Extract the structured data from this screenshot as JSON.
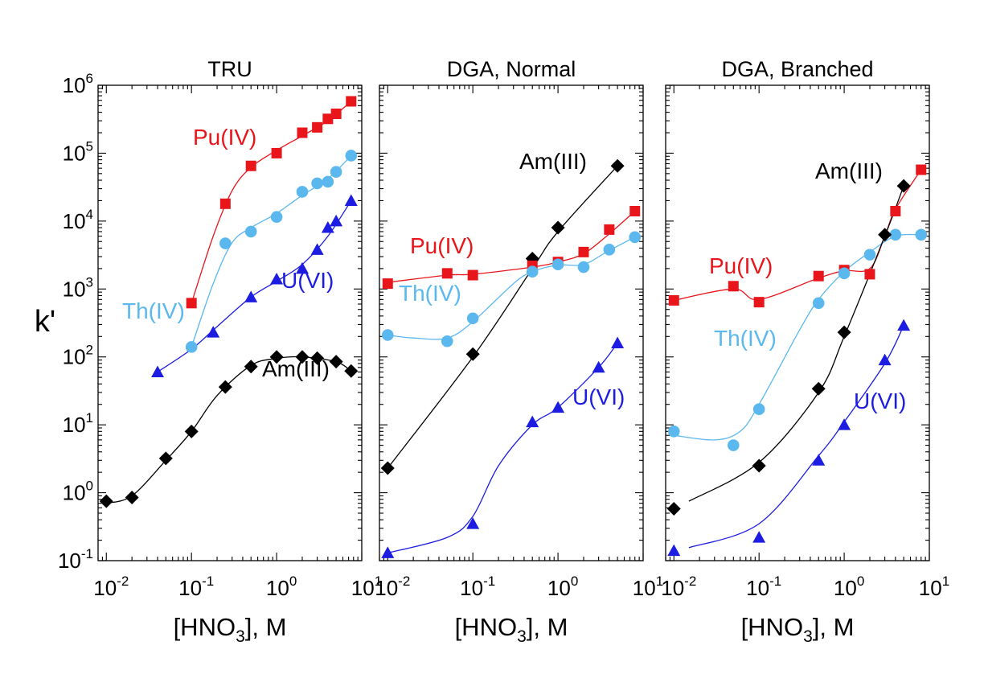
{
  "y_axis_label": "k'",
  "chart_data": [
    {
      "type": "scatter",
      "title": "TRU",
      "xlabel": "[HNO3], M",
      "ylabel": "k'",
      "xscale": "log",
      "yscale": "log",
      "xlim": [
        0.008,
        10
      ],
      "ylim": [
        0.1,
        1000000
      ],
      "x_ticks": [
        "10^-2",
        "10^-1",
        "10^0",
        "10^1"
      ],
      "y_ticks": [
        "10^-1",
        "10^0",
        "10^1",
        "10^2",
        "10^3",
        "10^4",
        "10^5",
        "10^6"
      ],
      "series": [
        {
          "name": "Pu(IV)",
          "color": "#e8151b",
          "marker": "square",
          "x": [
            0.1,
            0.25,
            0.5,
            1,
            2,
            3,
            4,
            5,
            7.5
          ],
          "y": [
            620,
            18000,
            65000,
            100000,
            200000,
            240000,
            320000,
            380000,
            580000
          ]
        },
        {
          "name": "Th(IV)",
          "color": "#5ab8ef",
          "marker": "circle",
          "x": [
            0.1,
            0.25,
            0.5,
            1,
            2,
            3,
            4,
            5,
            7.5
          ],
          "y": [
            140,
            4700,
            7000,
            11500,
            27000,
            36000,
            38000,
            53000,
            92000
          ]
        },
        {
          "name": "U(VI)",
          "color": "#1c1de0",
          "marker": "triangle",
          "x": [
            0.04,
            0.18,
            0.5,
            1,
            2,
            3,
            4,
            5,
            7.5
          ],
          "y": [
            60,
            230,
            760,
            1400,
            2000,
            3800,
            8000,
            10000,
            20000
          ]
        },
        {
          "name": "Am(III)",
          "color": "#000000",
          "marker": "diamond",
          "x": [
            0.01,
            0.02,
            0.05,
            0.1,
            0.25,
            0.5,
            1,
            2,
            3,
            5,
            7.5
          ],
          "y": [
            0.75,
            0.85,
            3.2,
            8,
            36,
            72,
            100,
            100,
            96,
            85,
            62
          ]
        }
      ],
      "curves": [
        {
          "color": "#e8151b",
          "x": [
            0.1,
            0.18,
            0.3,
            0.5,
            1,
            2,
            4,
            7.5
          ],
          "y": [
            620,
            6000,
            28000,
            62000,
            110000,
            180000,
            300000,
            580000
          ]
        },
        {
          "color": "#5ab8ef",
          "x": [
            0.1,
            0.18,
            0.3,
            0.5,
            1,
            2,
            4,
            7.5
          ],
          "y": [
            140,
            1200,
            4800,
            8000,
            13000,
            24000,
            42000,
            92000
          ]
        },
        {
          "color": "#1c1de0",
          "x": [
            0.04,
            0.1,
            0.2,
            0.5,
            1,
            2,
            4,
            7.5
          ],
          "y": [
            60,
            130,
            280,
            760,
            1300,
            2300,
            6000,
            20000
          ]
        },
        {
          "color": "#000000",
          "x": [
            0.01,
            0.02,
            0.05,
            0.1,
            0.2,
            0.5,
            1,
            2,
            5,
            7.5
          ],
          "y": [
            0.7,
            0.9,
            3,
            8,
            27,
            75,
            95,
            100,
            85,
            62
          ]
        }
      ],
      "annotations": [
        "Pu(IV)",
        "Th(IV)",
        "U(VI)",
        "Am(III)"
      ]
    },
    {
      "type": "scatter",
      "title": "DGA, Normal",
      "xlabel": "[HNO3], M",
      "ylabel": "k'",
      "xscale": "log",
      "yscale": "log",
      "xlim": [
        0.008,
        10
      ],
      "ylim": [
        0.1,
        1000000
      ],
      "x_ticks": [
        "10^-2",
        "10^-1",
        "10^0",
        "10^1"
      ],
      "y_ticks": [
        "10^-1",
        "10^0",
        "10^1",
        "10^2",
        "10^3",
        "10^4",
        "10^5",
        "10^6"
      ],
      "series": [
        {
          "name": "Am(III)",
          "color": "#000000",
          "marker": "diamond",
          "x": [
            0.01,
            0.1,
            0.5,
            1,
            5
          ],
          "y": [
            2.3,
            110,
            2800,
            8000,
            65000
          ]
        },
        {
          "name": "Pu(IV)",
          "color": "#e8151b",
          "marker": "square",
          "x": [
            0.01,
            0.05,
            0.1,
            0.5,
            1,
            2,
            4,
            8
          ],
          "y": [
            1200,
            1700,
            1600,
            2200,
            2500,
            3500,
            7500,
            14000
          ]
        },
        {
          "name": "Th(IV)",
          "color": "#5ab8ef",
          "marker": "circle",
          "x": [
            0.01,
            0.05,
            0.1,
            0.5,
            1,
            2,
            4,
            8
          ],
          "y": [
            210,
            170,
            370,
            1800,
            2300,
            2100,
            3800,
            5800
          ]
        },
        {
          "name": "U(VI)",
          "color": "#1c1de0",
          "marker": "triangle",
          "x": [
            0.01,
            0.1,
            0.5,
            1,
            3,
            5
          ],
          "y": [
            0.13,
            0.35,
            11,
            18,
            70,
            160
          ]
        }
      ],
      "curves": [
        {
          "color": "#000000",
          "x": [
            0.01,
            0.1,
            0.5,
            1,
            5
          ],
          "y": [
            2.3,
            100,
            2000,
            7000,
            65000
          ]
        },
        {
          "color": "#e8151b",
          "x": [
            0.01,
            0.05,
            0.1,
            0.5,
            1,
            2,
            4,
            8
          ],
          "y": [
            1250,
            1600,
            1650,
            2100,
            2500,
            3300,
            6500,
            14000
          ]
        },
        {
          "color": "#5ab8ef",
          "x": [
            0.01,
            0.02,
            0.05,
            0.1,
            0.3,
            0.5,
            1,
            2,
            4,
            8
          ],
          "y": [
            210,
            190,
            190,
            330,
            1200,
            1800,
            2250,
            2300,
            3700,
            5800
          ]
        },
        {
          "color": "#1c1de0",
          "x": [
            0.01,
            0.05,
            0.1,
            0.2,
            0.5,
            1,
            3,
            5
          ],
          "y": [
            0.13,
            0.22,
            0.45,
            2.5,
            10,
            18,
            70,
            160
          ]
        }
      ],
      "annotations": [
        "Am(III)",
        "Pu(IV)",
        "Th(IV)",
        "U(VI)"
      ]
    },
    {
      "type": "scatter",
      "title": "DGA, Branched",
      "xlabel": "[HNO3], M",
      "ylabel": "k'",
      "xscale": "log",
      "yscale": "log",
      "xlim": [
        0.008,
        10
      ],
      "ylim": [
        0.1,
        1000000
      ],
      "x_ticks": [
        "10^-2",
        "10^-1",
        "10^0",
        "10^1"
      ],
      "y_ticks": [
        "10^-1",
        "10^0",
        "10^1",
        "10^2",
        "10^3",
        "10^4",
        "10^5",
        "10^6"
      ],
      "series": [
        {
          "name": "Pu(IV)",
          "color": "#e8151b",
          "marker": "square",
          "x": [
            0.01,
            0.05,
            0.1,
            0.5,
            1,
            2,
            4,
            8
          ],
          "y": [
            680,
            1100,
            640,
            1550,
            1900,
            1650,
            14000,
            57000
          ]
        },
        {
          "name": "Th(IV)",
          "color": "#5ab8ef",
          "marker": "circle",
          "x": [
            0.01,
            0.05,
            0.1,
            0.5,
            1,
            2,
            4,
            8
          ],
          "y": [
            8,
            5,
            17,
            620,
            1700,
            3200,
            6300,
            6300
          ]
        },
        {
          "name": "Am(III)",
          "color": "#000000",
          "marker": "diamond",
          "x": [
            0.01,
            0.1,
            0.5,
            1,
            3,
            5
          ],
          "y": [
            0.58,
            2.5,
            34,
            230,
            6300,
            33000
          ]
        },
        {
          "name": "U(VI)",
          "color": "#1c1de0",
          "marker": "triangle",
          "x": [
            0.01,
            0.1,
            0.5,
            1,
            3,
            5
          ],
          "y": [
            0.14,
            0.22,
            3,
            10,
            90,
            290
          ]
        }
      ],
      "curves": [
        {
          "color": "#e8151b",
          "x": [
            0.01,
            0.05,
            0.1,
            0.5,
            1,
            2,
            3,
            4,
            8
          ],
          "y": [
            680,
            1000,
            700,
            1450,
            1850,
            2000,
            6000,
            15000,
            57000
          ]
        },
        {
          "color": "#5ab8ef",
          "x": [
            0.01,
            0.03,
            0.06,
            0.1,
            0.3,
            0.5,
            1,
            2,
            4,
            8
          ],
          "y": [
            7,
            6,
            8,
            20,
            250,
            700,
            1800,
            3500,
            6000,
            6300
          ]
        },
        {
          "color": "#000000",
          "x": [
            0.015,
            0.1,
            0.5,
            1,
            3,
            5
          ],
          "y": [
            0.75,
            2.8,
            30,
            200,
            6000,
            33000
          ]
        },
        {
          "color": "#1c1de0",
          "x": [
            0.015,
            0.1,
            0.5,
            1,
            3,
            5
          ],
          "y": [
            0.155,
            0.35,
            3.5,
            11,
            80,
            290
          ]
        }
      ],
      "annotations": [
        "Am(III)",
        "Pu(IV)",
        "Th(IV)",
        "U(VI)"
      ]
    }
  ]
}
